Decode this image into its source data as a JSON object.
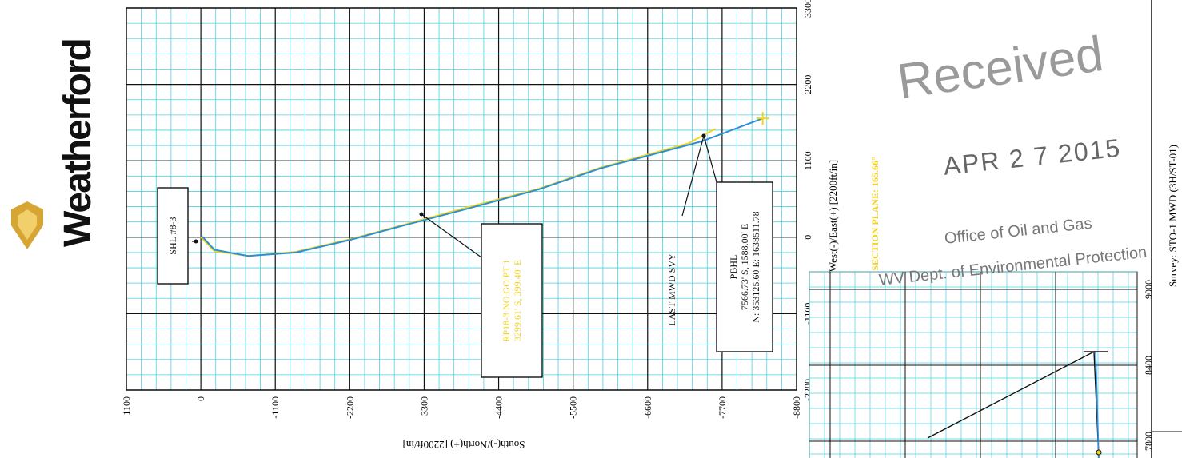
{
  "brand": {
    "logo_text": "Weatherford",
    "logo_color": "#d7a533"
  },
  "stamp": {
    "received": "Received",
    "date": "APR 2 7 2015",
    "office": "Office of Oil and Gas",
    "department": "WV Dept. of Environmental Protection"
  },
  "vertical_section_label": "VERTICAL SECTION PLANE: 165.66°",
  "survey_label": "Survey: STO-1 MWD (3H/ST-01)",
  "colors": {
    "grid_minor": "#4fd1df",
    "grid_major": "#111111",
    "plan_line": "#f2d41d",
    "actual_line": "#2c8fd8"
  },
  "chart_data": [
    {
      "type": "line",
      "ylabel": "South(-)/North(+) [2200ft/in]",
      "xlabel": "West(-)/East(+) [2200ft/in]",
      "y_ticks": [
        "1100",
        "0",
        "-1100",
        "-2200",
        "-3300",
        "-4400",
        "-5500",
        "-6600",
        "-7700",
        "-8800"
      ],
      "x_ticks": [
        "3300",
        "2200",
        "1100",
        "0",
        "-1100",
        "-2200"
      ],
      "ylim": [
        -8800,
        1100
      ],
      "xlim": [
        -2200,
        3300
      ],
      "series": [
        {
          "role": "plan",
          "x": [
            0,
            -200,
            -270,
            -210,
            -30,
            180,
            420,
            700,
            1000,
            1350,
            1560
          ],
          "y": [
            0,
            -200,
            -700,
            -1400,
            -2200,
            -3000,
            -3900,
            -5000,
            -5900,
            -7200,
            -7600
          ]
        },
        {
          "role": "actual",
          "x": [
            10,
            -180,
            -270,
            -220,
            -40,
            170,
            400,
            690,
            990,
            1380,
            1710
          ],
          "y": [
            -20,
            -200,
            -700,
            -1400,
            -2200,
            -3000,
            -3900,
            -5000,
            -5900,
            -7400,
            -8300
          ]
        }
      ],
      "annotations": [
        {
          "id": "shl",
          "lines": [
            "SHL #8-3"
          ]
        },
        {
          "id": "rp",
          "lines": [
            "RP18-3 NO GO PT 1",
            "3299.61' S, 399.40' E"
          ]
        },
        {
          "id": "last_mwd",
          "lines": [
            "LAST MWD SVY"
          ]
        },
        {
          "id": "pbhl",
          "lines": [
            "PBHL",
            "7566.73' S, 1588.00' E",
            "N: 353125.60  E: 1638511.78"
          ]
        }
      ]
    },
    {
      "type": "line",
      "y_ticks": [
        "9000",
        "8400",
        "7800"
      ],
      "series": [
        {
          "role": "plan",
          "x": [
            0,
            1
          ],
          "y": [
            8400,
            8400
          ]
        }
      ]
    }
  ]
}
